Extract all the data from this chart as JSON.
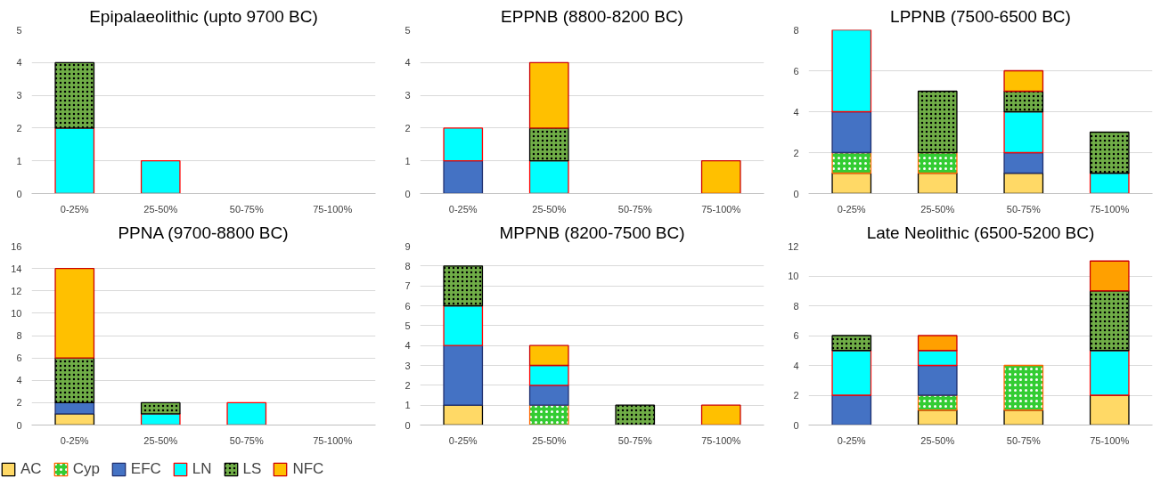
{
  "chart_data": [
    {
      "type": "bar",
      "stacked": true,
      "title": "Epipalaeolithic (upto 9700 BC)",
      "categories": [
        "0-25%",
        "25-50%",
        "50-75%",
        "75-100%"
      ],
      "ylim": [
        0,
        5
      ],
      "yticks": [
        0,
        1,
        2,
        3,
        4,
        5
      ],
      "grid": "y",
      "series": [
        {
          "color": "#ffd966",
          "values": [
            null,
            null,
            null,
            null
          ]
        },
        {
          "color": "#33cc33",
          "values": [
            null,
            null,
            null,
            null
          ]
        },
        {
          "color": "#4472c4",
          "values": [
            null,
            null,
            null,
            null
          ]
        },
        {
          "color": "#00ffff",
          "values": [
            2,
            1,
            null,
            null
          ]
        },
        {
          "color": "#70ad47",
          "values": [
            2,
            null,
            null,
            null
          ]
        },
        {
          "color": "#ffc000",
          "values": [
            null,
            null,
            null,
            null
          ]
        }
      ]
    },
    {
      "type": "bar",
      "stacked": true,
      "title": "EPPNB (8800-8200 BC)",
      "categories": [
        "0-25%",
        "25-50%",
        "50-75%",
        "75-100%"
      ],
      "ylim": [
        0,
        5
      ],
      "yticks": [
        0,
        1,
        2,
        3,
        4,
        5
      ],
      "grid": "y",
      "series": [
        {
          "color": "#ffd966",
          "values": [
            null,
            null,
            null,
            null
          ]
        },
        {
          "color": "#33cc33",
          "values": [
            null,
            null,
            null,
            null
          ]
        },
        {
          "color": "#4472c4",
          "values": [
            1,
            null,
            null,
            null
          ]
        },
        {
          "color": "#00ffff",
          "values": [
            1,
            1,
            null,
            null
          ]
        },
        {
          "color": "#70ad47",
          "values": [
            null,
            1,
            null,
            null
          ]
        },
        {
          "color": "#ffc000",
          "values": [
            null,
            2,
            null,
            1
          ]
        }
      ]
    },
    {
      "type": "bar",
      "stacked": true,
      "title": "LPPNB (7500-6500 BC)",
      "categories": [
        "0-25%",
        "25-50%",
        "50-75%",
        "75-100%"
      ],
      "ylim": [
        0,
        8
      ],
      "yticks": [
        0,
        2,
        4,
        6,
        8
      ],
      "grid": "y",
      "series": [
        {
          "color": "#ffd966",
          "values": [
            1,
            1,
            1,
            null
          ]
        },
        {
          "color": "#33cc33",
          "values": [
            1,
            1,
            null,
            null
          ]
        },
        {
          "color": "#4472c4",
          "values": [
            2,
            null,
            1,
            null
          ]
        },
        {
          "color": "#00ffff",
          "values": [
            4,
            null,
            2,
            1
          ]
        },
        {
          "color": "#70ad47",
          "values": [
            null,
            3,
            1,
            2
          ]
        },
        {
          "color": "#ffc000",
          "values": [
            null,
            null,
            1,
            null
          ]
        }
      ]
    },
    {
      "type": "bar",
      "stacked": true,
      "title": "PPNA (9700-8800 BC)",
      "categories": [
        "0-25%",
        "25-50%",
        "50-75%",
        "75-100%"
      ],
      "ylim": [
        0,
        16
      ],
      "yticks": [
        0,
        2,
        4,
        6,
        8,
        10,
        12,
        14,
        16
      ],
      "grid": "y",
      "legend": "bottom",
      "series": [
        {
          "name": "AC",
          "color": "#ffd966",
          "values": [
            1,
            null,
            null,
            null
          ]
        },
        {
          "name": "Cyp",
          "color": "#33cc33",
          "values": [
            null,
            null,
            null,
            null
          ]
        },
        {
          "name": "EFC",
          "color": "#4472c4",
          "values": [
            1,
            null,
            null,
            null
          ]
        },
        {
          "name": "LN",
          "color": "#00ffff",
          "values": [
            null,
            1,
            2,
            null
          ]
        },
        {
          "name": "LS",
          "color": "#70ad47",
          "values": [
            4,
            1,
            null,
            null
          ]
        },
        {
          "name": "NFC",
          "color": "#ffc000",
          "values": [
            8,
            null,
            null,
            null
          ]
        }
      ]
    },
    {
      "type": "bar",
      "stacked": true,
      "title": "MPPNB (8200-7500 BC)",
      "categories": [
        "0-25%",
        "25-50%",
        "50-75%",
        "75-100%"
      ],
      "ylim": [
        0,
        9
      ],
      "yticks": [
        0,
        1,
        2,
        3,
        4,
        5,
        6,
        7,
        8,
        9
      ],
      "grid": "y",
      "series": [
        {
          "color": "#ffd966",
          "values": [
            1,
            null,
            null,
            null
          ]
        },
        {
          "color": "#33cc33",
          "values": [
            null,
            1,
            null,
            null
          ]
        },
        {
          "color": "#4472c4",
          "values": [
            3,
            1,
            null,
            null
          ]
        },
        {
          "color": "#00ffff",
          "values": [
            2,
            1,
            null,
            null
          ]
        },
        {
          "color": "#70ad47",
          "values": [
            2,
            null,
            1,
            null
          ]
        },
        {
          "color": "#ffc000",
          "values": [
            null,
            1,
            null,
            1
          ]
        }
      ]
    },
    {
      "type": "bar",
      "stacked": true,
      "title": "Late Neolithic (6500-5200 BC)",
      "categories": [
        "0-25%",
        "25-50%",
        "50-75%",
        "75-100%"
      ],
      "ylim": [
        0,
        12
      ],
      "yticks": [
        0,
        2,
        4,
        6,
        8,
        10,
        12
      ],
      "grid": "y",
      "series": [
        {
          "color": "#ffd966",
          "values": [
            null,
            1,
            1,
            2
          ]
        },
        {
          "color": "#33cc33",
          "values": [
            null,
            1,
            3,
            null
          ]
        },
        {
          "color": "#4472c4",
          "values": [
            2,
            2,
            null,
            null
          ]
        },
        {
          "color": "#00ffff",
          "values": [
            3,
            1,
            null,
            3
          ]
        },
        {
          "color": "#70ad47",
          "values": [
            1,
            null,
            null,
            4
          ]
        },
        {
          "color": "#ffa000",
          "values": [
            null,
            1,
            null,
            2
          ]
        }
      ]
    }
  ]
}
